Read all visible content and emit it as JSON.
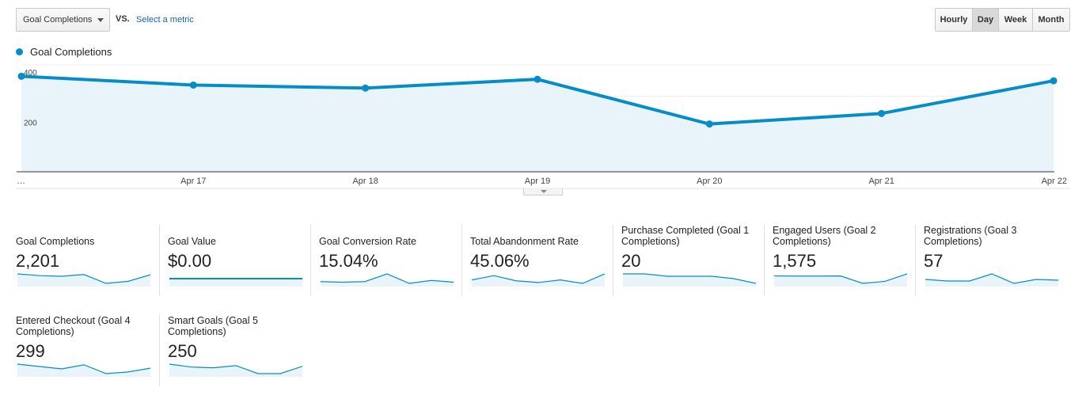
{
  "controls": {
    "metric_select": "Goal Completions",
    "vs": "VS.",
    "select_metric": "Select a metric",
    "time_buttons": [
      "Hourly",
      "Day",
      "Week",
      "Month"
    ],
    "active_time": "Day"
  },
  "chart_data": {
    "type": "area",
    "series": [
      {
        "name": "Goal Completions",
        "values": [
          380,
          345,
          333,
          368,
          190,
          232,
          362
        ]
      }
    ],
    "x": [
      "…",
      "Apr 17",
      "Apr 18",
      "Apr 19",
      "Apr 20",
      "Apr 21",
      "Apr 22"
    ],
    "y_ticks": [
      "400",
      "200"
    ],
    "ylim": [
      0,
      400
    ],
    "grid": true,
    "legend": "top-left",
    "color": "#058dc7",
    "fill_color": "#e8f4fa"
  },
  "scorecards": [
    {
      "label": "Goal Completions",
      "value": "2,201",
      "trend": [
        380,
        345,
        333,
        368,
        190,
        232,
        362
      ]
    },
    {
      "label": "Goal Value",
      "value": "$0.00",
      "trend": [
        0,
        0,
        0,
        0,
        0,
        0,
        0
      ]
    },
    {
      "label": "Goal Conversion Rate",
      "value": "15.04%",
      "trend": [
        15.2,
        15.1,
        15.2,
        16.5,
        14.9,
        15.4,
        15.1
      ]
    },
    {
      "label": "Total Abandonment Rate",
      "value": "45.06%",
      "trend": [
        45.5,
        46,
        45.4,
        45.2,
        45.5,
        45.1,
        46.2
      ]
    },
    {
      "label": "Purchase Completed (Goal 1 Completions)",
      "value": "20",
      "trend": [
        5,
        5,
        4,
        4,
        4,
        3,
        1
      ]
    },
    {
      "label": "Engaged Users (Goal 2 Completions)",
      "value": "1,575",
      "trend": [
        280,
        278,
        278,
        279,
        170,
        200,
        310
      ]
    },
    {
      "label": "Registrations (Goal 3 Completions)",
      "value": "57",
      "trend": [
        10,
        8,
        8,
        17,
        5,
        10,
        9
      ]
    },
    {
      "label": "Entered Checkout (Goal 4 Completions)",
      "value": "299",
      "trend": [
        48,
        41,
        34,
        46,
        20,
        25,
        36
      ]
    },
    {
      "label": "Smart Goals (Goal 5 Completions)",
      "value": "250",
      "trend": [
        40,
        36,
        35,
        38,
        27,
        27,
        37
      ]
    }
  ]
}
